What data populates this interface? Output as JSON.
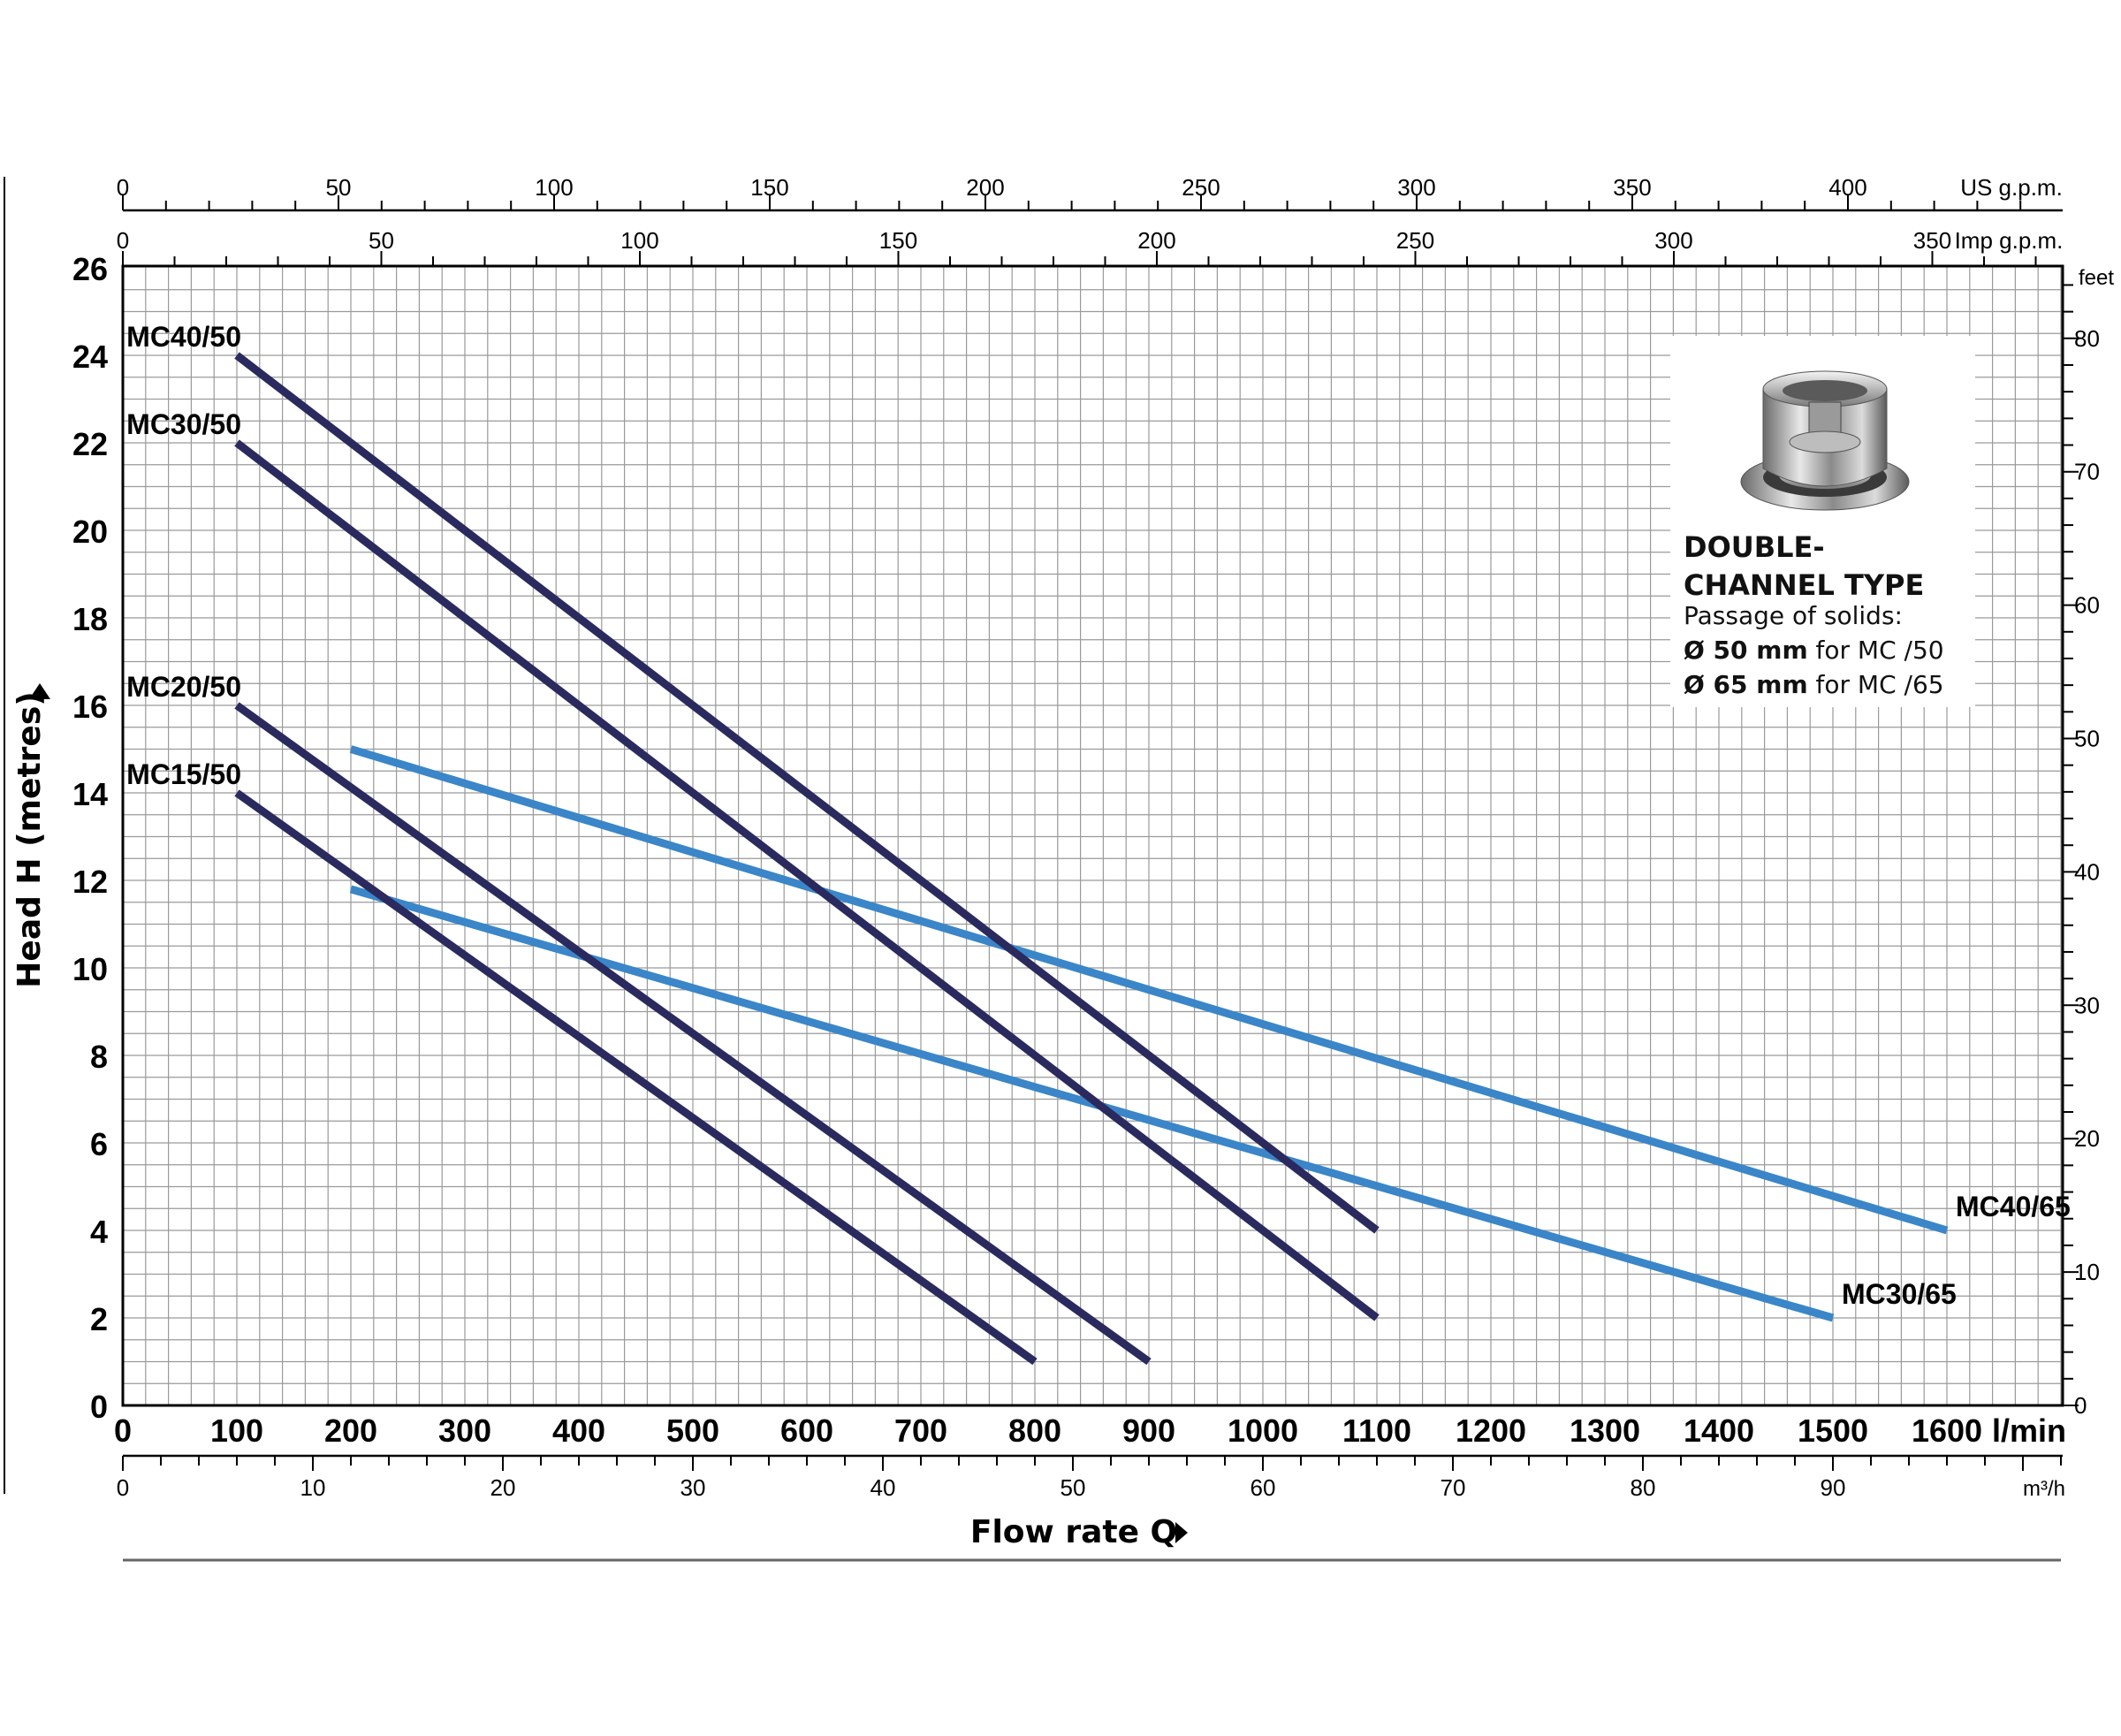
{
  "chart_data": {
    "type": "line",
    "xlabel": "Flow rate Q",
    "ylabel": "Head H  (metres)",
    "x_unit": "l/min",
    "xlim": [
      0,
      1700
    ],
    "ylim": [
      0,
      26
    ],
    "x_ticks": [
      0,
      100,
      200,
      300,
      400,
      500,
      600,
      700,
      800,
      900,
      1000,
      1100,
      1200,
      1300,
      1400,
      1500,
      1600
    ],
    "y_ticks": [
      0,
      2,
      4,
      6,
      8,
      10,
      12,
      14,
      16,
      18,
      20,
      22,
      24,
      26
    ],
    "grid": true,
    "secondary_axes": {
      "top_us": {
        "unit": "US g.p.m.",
        "ticks": [
          0,
          50,
          100,
          150,
          200,
          250,
          300,
          350,
          400
        ]
      },
      "top_imp": {
        "unit": "Imp g.p.m.",
        "ticks": [
          0,
          50,
          100,
          150,
          200,
          250,
          300,
          350
        ]
      },
      "bottom_m3h": {
        "unit": "m³/h",
        "ticks": [
          0,
          10,
          20,
          30,
          40,
          50,
          60,
          70,
          80,
          90
        ]
      },
      "right_feet": {
        "unit": "feet",
        "ticks": [
          0,
          10,
          20,
          30,
          40,
          50,
          60,
          70,
          80
        ]
      }
    },
    "series": [
      {
        "name": "MC40/50",
        "color": "#2a2a5e",
        "x": [
          100,
          1100
        ],
        "y": [
          24,
          4
        ],
        "label_at": "start"
      },
      {
        "name": "MC30/50",
        "color": "#2a2a5e",
        "x": [
          100,
          1100
        ],
        "y": [
          22,
          2
        ],
        "label_at": "start"
      },
      {
        "name": "MC20/50",
        "color": "#2a2a5e",
        "x": [
          100,
          900
        ],
        "y": [
          16,
          1
        ],
        "label_at": "start"
      },
      {
        "name": "MC15/50",
        "color": "#2a2a5e",
        "x": [
          100,
          800
        ],
        "y": [
          14,
          1
        ],
        "label_at": "start"
      },
      {
        "name": "MC40/65",
        "color": "#3a86c8",
        "x": [
          200,
          1600
        ],
        "y": [
          15,
          4
        ],
        "label_at": "end"
      },
      {
        "name": "MC30/65",
        "color": "#3a86c8",
        "x": [
          200,
          1500
        ],
        "y": [
          11.8,
          2
        ],
        "label_at": "end"
      }
    ]
  },
  "inset": {
    "title": "DOUBLE-CHANNEL TYPE",
    "subtitle": "Passage of solids:",
    "line1_bold": "Ø 50 mm",
    "line1_rest": " for MC /50",
    "line2_bold": "Ø 65 mm",
    "line2_rest": " for MC /65",
    "image_icon": "double-channel-impeller-image"
  }
}
